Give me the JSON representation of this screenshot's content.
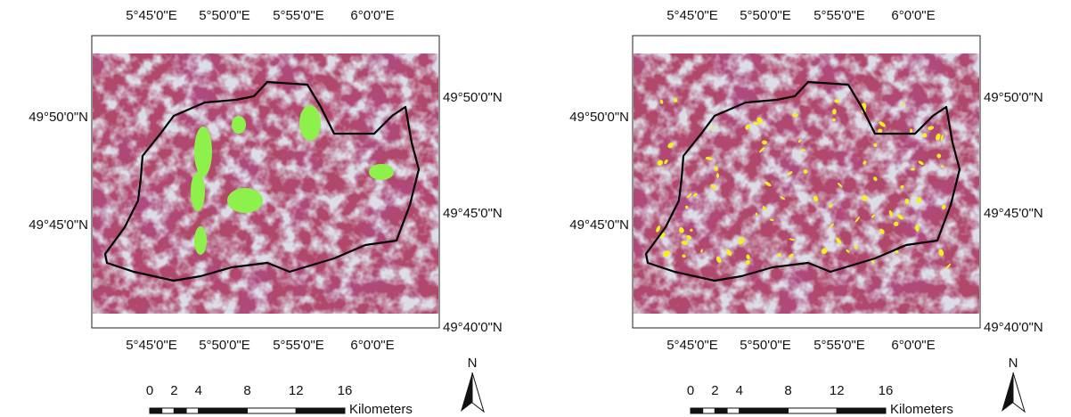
{
  "panels": [
    {
      "top_labels": [
        "5°45'0\"E",
        "5°50'0\"E",
        "5°55'0\"E",
        "6°0'0\"E"
      ],
      "bottom_labels": [
        "5°45'0\"E",
        "5°50'0\"E",
        "5°55'0\"E",
        "6°0'0\"E"
      ],
      "left_labels": [
        "49°50'0\"N",
        "49°45'0\"N"
      ],
      "right_labels": [
        "49°50'0\"N",
        "49°45'0\"N",
        "49°40'0\"N"
      ],
      "scale_bar": {
        "ticks": [
          0,
          2,
          4,
          8,
          12,
          16
        ],
        "unit": "Kilometers"
      },
      "north": "N"
    },
    {
      "top_labels": [
        "5°45'0\"E",
        "5°50'0\"E",
        "5°55'0\"E",
        "6°0'0\"E"
      ],
      "bottom_labels": [
        "5°45'0\"E",
        "5°50'0\"E",
        "5°55'0\"E",
        "6°0'0\"E"
      ],
      "left_labels": [
        "49°50'0\"N",
        "49°45'0\"N"
      ],
      "right_labels": [
        "49°50'0\"N",
        "49°45'0\"N",
        "49°40'0\"N"
      ],
      "scale_bar": {
        "ticks": [
          0,
          2,
          4,
          8,
          12,
          16
        ],
        "unit": "Kilometers"
      },
      "north": "N"
    }
  ]
}
